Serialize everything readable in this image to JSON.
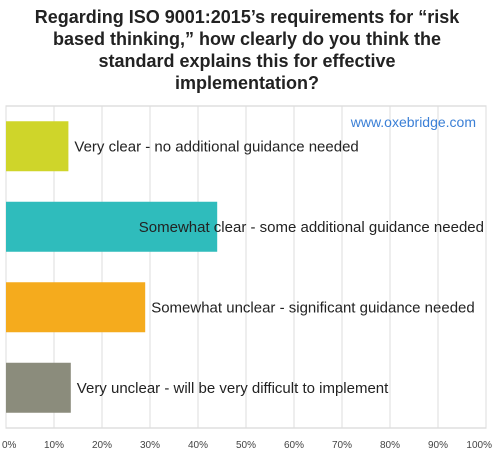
{
  "chart_data": {
    "type": "bar",
    "orientation": "horizontal",
    "title": "Regarding ISO 9001:2015’s requirements for “risk based thinking,” how clearly do you think the standard explains this for effective implementation?",
    "categories": [
      "Very clear - no additional guidance needed",
      "Somewhat clear - some additional guidance needed",
      "Somewhat unclear - significant guidance needed",
      "Very unclear - will be very difficult to implement"
    ],
    "values": [
      13,
      44,
      29,
      13.5
    ],
    "colors": [
      "#cfd52a",
      "#2fbcbc",
      "#f5ab1d",
      "#8b8c7c"
    ],
    "x_ticks": [
      "0%",
      "10%",
      "20%",
      "30%",
      "40%",
      "50%",
      "60%",
      "70%",
      "80%",
      "90%",
      "100%"
    ],
    "xlim": [
      0,
      100
    ],
    "grid": true,
    "legend": "none",
    "watermark": "www.oxebridge.com",
    "watermark_color": "#3a7fd6"
  }
}
